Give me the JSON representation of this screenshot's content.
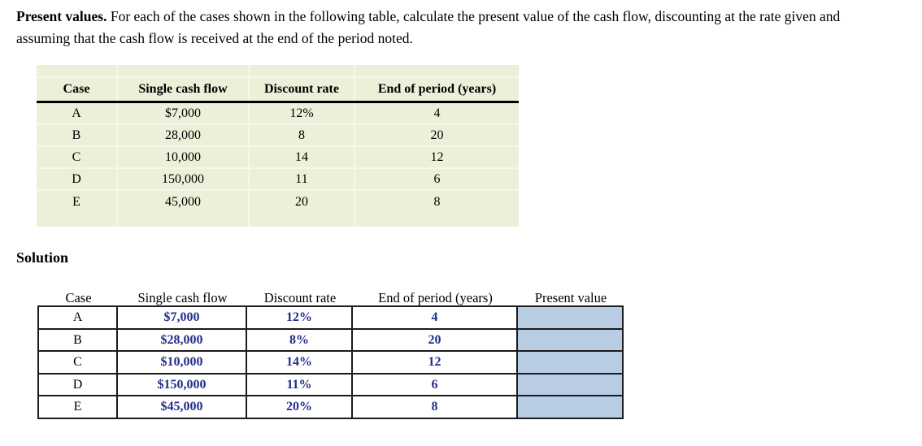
{
  "intro": {
    "lead": "Present values.",
    "line1_rest": " For each of the cases shown in the following table, calculate the present value of the cash flow, discounting at the rate given and",
    "line2": "assuming that the cash flow is received at the end of the period noted."
  },
  "problem_table": {
    "headers": {
      "case": "Case",
      "cash_flow": "Single cash flow",
      "discount_rate": "Discount rate",
      "period": "End of period (years)"
    },
    "rows": [
      {
        "case": "A",
        "cash_flow": "$7,000",
        "discount_rate": "12%",
        "period": "4"
      },
      {
        "case": "B",
        "cash_flow": "28,000",
        "discount_rate": "8",
        "period": "20"
      },
      {
        "case": "C",
        "cash_flow": "10,000",
        "discount_rate": "14",
        "period": "12"
      },
      {
        "case": "D",
        "cash_flow": "150,000",
        "discount_rate": "11",
        "period": "6"
      },
      {
        "case": "E",
        "cash_flow": "45,000",
        "discount_rate": "20",
        "period": "8"
      }
    ],
    "colors": {
      "background": "#edefd9",
      "gridline": "#f6f7eb",
      "header_rule": "#000000"
    }
  },
  "solution": {
    "heading": "Solution",
    "table": {
      "headers": {
        "case": "Case",
        "cash_flow": "Single cash flow",
        "discount_rate": "Discount rate",
        "period": "End of period (years)",
        "present_value": "Present value"
      },
      "rows": [
        {
          "case": "A",
          "cash_flow": "$7,000",
          "discount_rate": "12%",
          "period": "4",
          "present_value": ""
        },
        {
          "case": "B",
          "cash_flow": "$28,000",
          "discount_rate": "8%",
          "period": "20",
          "present_value": ""
        },
        {
          "case": "C",
          "cash_flow": "$10,000",
          "discount_rate": "14%",
          "period": "12",
          "present_value": ""
        },
        {
          "case": "D",
          "cash_flow": "$150,000",
          "discount_rate": "11%",
          "period": "6",
          "present_value": ""
        },
        {
          "case": "E",
          "cash_flow": "$45,000",
          "discount_rate": "20%",
          "period": "8",
          "present_value": ""
        }
      ],
      "colors": {
        "value_text": "#232e8c",
        "input_cell_fill": "#b8cce4",
        "border": "#1b1b1b"
      }
    }
  }
}
